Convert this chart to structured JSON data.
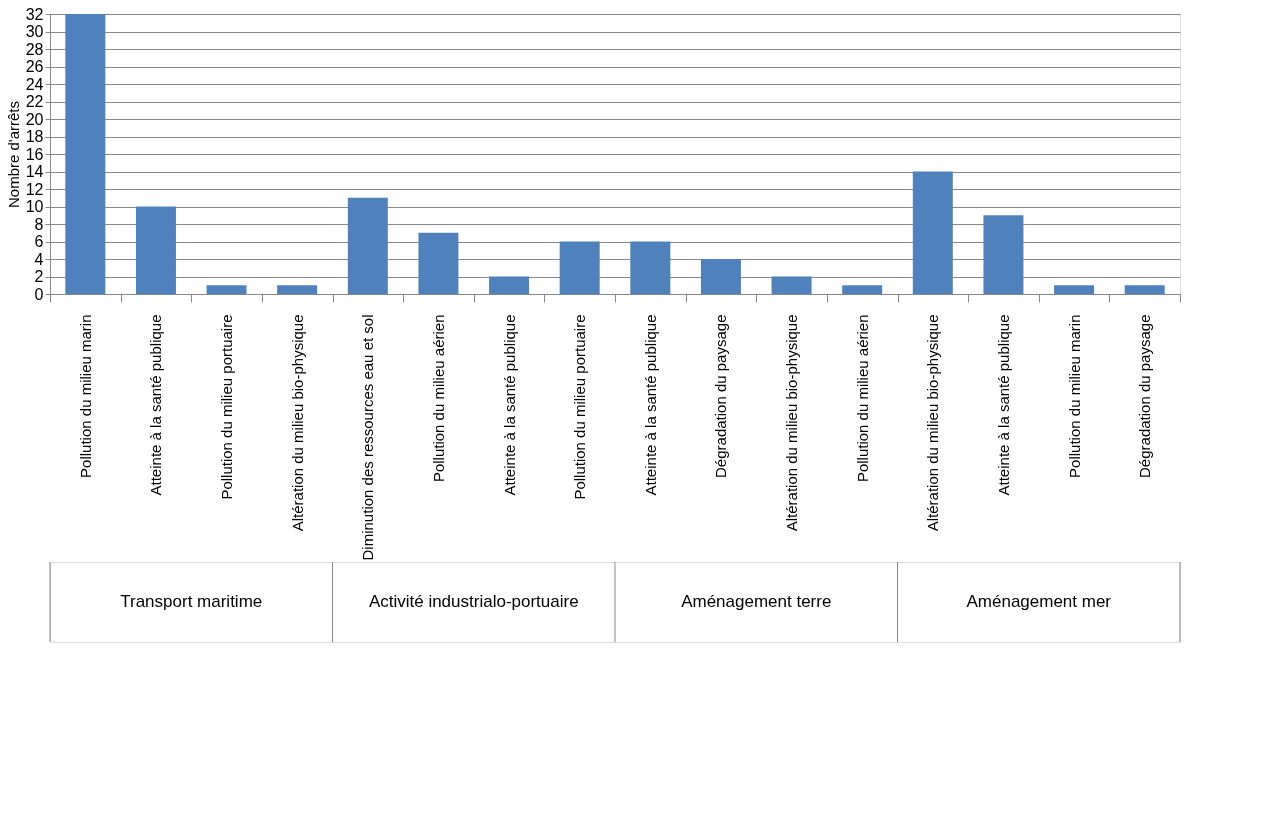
{
  "chart_data": {
    "type": "bar",
    "ylabel": "Nombre d'arrêts",
    "categories": [
      "Pollution du milieu marin",
      "Atteinte à la santé publique",
      "Pollution du milieu portuaire",
      "Altération du milieu bio-physique",
      "Diminution des ressources eau et sol",
      "Pollution du milieu aérien",
      "Atteinte à la santé publique",
      "Pollution du milieu portuaire",
      "Atteinte à la santé publique",
      "Dégradation du paysage",
      "Altération du milieu bio-physique",
      "Pollution du milieu aérien",
      "Altération du milieu bio-physique",
      "Atteinte à la santé publique",
      "Pollution du milieu marin",
      "Dégradation du paysage"
    ],
    "values": [
      32,
      10,
      1,
      1,
      11,
      7,
      2,
      6,
      6,
      4,
      2,
      1,
      14,
      9,
      1,
      1
    ],
    "color": "#4f81bd",
    "ylim": [
      0,
      32
    ],
    "yticks": [
      0,
      2,
      4,
      6,
      8,
      10,
      12,
      14,
      16,
      18,
      20,
      22,
      24,
      26,
      28,
      30,
      32
    ],
    "grid": "y",
    "annotations": [
      "Transport maritime",
      "Activité industrialo-portuaire",
      "Aménagement terre",
      "Aménagement mer"
    ]
  }
}
